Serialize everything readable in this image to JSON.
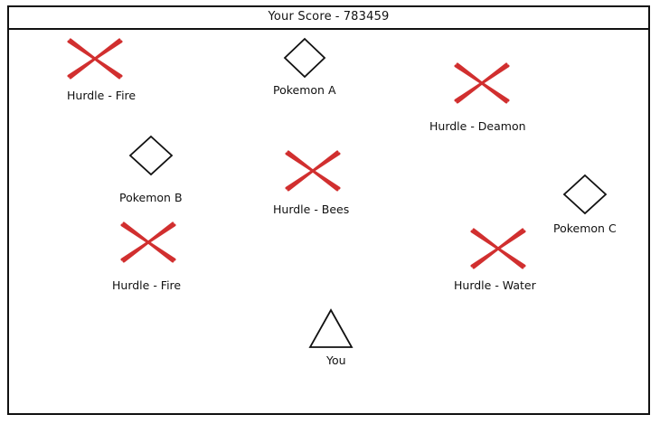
{
  "header": {
    "score_label": "Your Score",
    "separator": "-",
    "score_value": "783459"
  },
  "colors": {
    "hurdle_x": "#d12f2f",
    "outline": "#111111",
    "background": "#ffffff"
  },
  "pokemon": [
    {
      "label": "Pokemon A",
      "icon": "diamond-icon"
    },
    {
      "label": "Pokemon B",
      "icon": "diamond-icon"
    },
    {
      "label": "Pokemon C",
      "icon": "diamond-icon"
    }
  ],
  "hurdles": [
    {
      "label": "Hurdle - Fire",
      "icon": "red-x-icon"
    },
    {
      "label": "Hurdle - Deamon",
      "icon": "red-x-icon"
    },
    {
      "label": "Hurdle - Bees",
      "icon": "red-x-icon"
    },
    {
      "label": "Hurdle - Fire",
      "icon": "red-x-icon"
    },
    {
      "label": "Hurdle - Water",
      "icon": "red-x-icon"
    }
  ],
  "player": {
    "label": "You",
    "icon": "triangle-icon"
  }
}
